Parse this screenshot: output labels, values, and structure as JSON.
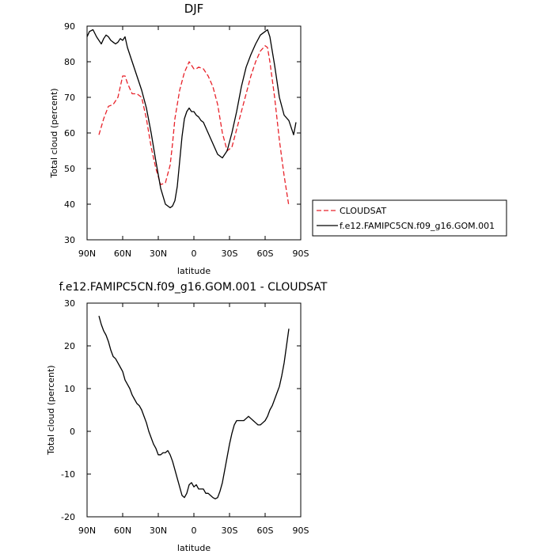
{
  "chart_data": [
    {
      "type": "line",
      "title": "DJF",
      "xlabel": "latitude",
      "ylabel": "Total cloud (percent)",
      "xlim": [
        90,
        -90
      ],
      "ylim": [
        30,
        90
      ],
      "x_ticks": [
        90,
        60,
        30,
        0,
        -30,
        -60,
        -90
      ],
      "x_tick_labels": [
        "90N",
        "60N",
        "30N",
        "0",
        "30S",
        "60S",
        "90S"
      ],
      "y_ticks": [
        30,
        40,
        50,
        60,
        70,
        80,
        90
      ],
      "y_tick_labels": [
        "30",
        "40",
        "50",
        "60",
        "70",
        "80",
        "90"
      ],
      "legend_position": "right, outside plot",
      "series": [
        {
          "name": "CLOUDSAT",
          "color": "#e8222a",
          "dash": "dashed",
          "x": [
            80,
            76,
            72,
            68,
            64,
            62,
            60,
            58,
            56,
            52,
            48,
            44,
            40,
            36,
            32,
            28,
            24,
            20,
            18,
            16,
            12,
            8,
            4,
            2,
            0,
            -2,
            -4,
            -8,
            -12,
            -16,
            -20,
            -24,
            -28,
            -32,
            -36,
            -40,
            -44,
            -48,
            -52,
            -56,
            -60,
            -62,
            -64,
            -68,
            -72,
            -76,
            -80
          ],
          "y": [
            59.5,
            64,
            67.5,
            68,
            70,
            73,
            76,
            76,
            74,
            71,
            71,
            70,
            64,
            56,
            50,
            45.5,
            46,
            51,
            57,
            64,
            72,
            77,
            80,
            79,
            78,
            78,
            78.5,
            78,
            76,
            73,
            68,
            60,
            55,
            56,
            61,
            66,
            71,
            76,
            80,
            83,
            84.5,
            84,
            80,
            70,
            58,
            48,
            39.5
          ]
        },
        {
          "name": "f.e12.FAMIPC5CN.f09_g16.GOM.001",
          "color": "#000000",
          "dash": "solid",
          "x": [
            90,
            88,
            85,
            82,
            78,
            76,
            74,
            72,
            70,
            68,
            66,
            64,
            62,
            60,
            58,
            56,
            52,
            48,
            44,
            40,
            36,
            32,
            28,
            24,
            20,
            18,
            16,
            14,
            12,
            10,
            8,
            6,
            4,
            2,
            0,
            -2,
            -4,
            -6,
            -8,
            -12,
            -16,
            -20,
            -24,
            -28,
            -32,
            -36,
            -40,
            -44,
            -48,
            -52,
            -56,
            -60,
            -62,
            -64,
            -68,
            -72,
            -76,
            -80,
            -82,
            -84,
            -86
          ],
          "y": [
            87,
            88.5,
            89,
            87,
            85,
            86.5,
            87.5,
            87,
            86,
            85.5,
            85,
            85.5,
            86.5,
            86,
            87,
            84,
            80,
            76,
            72,
            67,
            60,
            52,
            44.5,
            40,
            39,
            39.5,
            41,
            45,
            52,
            59,
            64,
            66,
            67,
            66,
            66,
            65,
            64.5,
            63.5,
            63,
            60,
            57,
            54,
            53,
            55,
            60,
            66,
            73,
            78.5,
            82,
            85,
            87.5,
            88.5,
            89,
            87,
            79,
            70,
            65,
            63.5,
            61.5,
            59.5,
            63
          ]
        }
      ]
    },
    {
      "type": "line",
      "title": "f.e12.FAMIPC5CN.f09_g16.GOM.001 - CLOUDSAT",
      "xlabel": "latitude",
      "ylabel": "Total cloud (percent)",
      "xlim": [
        90,
        -90
      ],
      "ylim": [
        -20,
        30
      ],
      "x_ticks": [
        90,
        60,
        30,
        0,
        -30,
        -60,
        -90
      ],
      "x_tick_labels": [
        "90N",
        "60N",
        "30N",
        "0",
        "30S",
        "60S",
        "90S"
      ],
      "y_ticks": [
        -20,
        -10,
        0,
        10,
        20,
        30
      ],
      "y_tick_labels": [
        "-20",
        "-10",
        "0",
        "10",
        "20",
        "30"
      ],
      "series": [
        {
          "color": "#000000",
          "dash": "solid",
          "x": [
            80,
            78,
            76,
            74,
            72,
            70,
            68,
            66,
            64,
            62,
            60,
            58,
            56,
            54,
            52,
            50,
            48,
            46,
            44,
            42,
            40,
            38,
            36,
            34,
            32,
            30,
            28,
            26,
            24,
            22,
            20,
            18,
            16,
            14,
            12,
            10,
            8,
            6,
            4,
            2,
            0,
            -2,
            -4,
            -6,
            -8,
            -10,
            -12,
            -14,
            -16,
            -18,
            -20,
            -22,
            -24,
            -26,
            -28,
            -30,
            -32,
            -34,
            -36,
            -38,
            -40,
            -42,
            -44,
            -46,
            -48,
            -50,
            -52,
            -54,
            -56,
            -58,
            -60,
            -62,
            -64,
            -66,
            -68,
            -70,
            -72,
            -74,
            -76,
            -78,
            -80
          ],
          "y": [
            27,
            25,
            23.5,
            22.5,
            21,
            19,
            17.5,
            17,
            16,
            15,
            14,
            12,
            11,
            10,
            8.5,
            7.5,
            6.5,
            6,
            5,
            3.5,
            2,
            0,
            -1.5,
            -3,
            -4,
            -5.5,
            -5.5,
            -5,
            -5,
            -4.5,
            -5.5,
            -7,
            -9,
            -11,
            -13,
            -15,
            -15.5,
            -14.5,
            -12.5,
            -12,
            -13,
            -12.5,
            -13.5,
            -13.5,
            -13.5,
            -14.5,
            -14.5,
            -15,
            -15.5,
            -15.8,
            -15.5,
            -14,
            -12,
            -9,
            -6,
            -3,
            -0.5,
            1.5,
            2.5,
            2.5,
            2.5,
            2.5,
            3,
            3.5,
            3,
            2.5,
            2,
            1.5,
            1.5,
            2,
            2.5,
            3.5,
            5,
            6,
            7.5,
            9,
            10.5,
            13,
            16,
            20,
            24
          ]
        }
      ]
    }
  ]
}
